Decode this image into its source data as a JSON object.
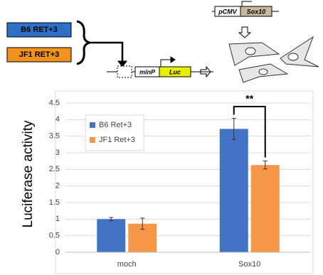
{
  "diagram": {
    "enhancers": [
      "B6 RET+3",
      "JF1 RET+3"
    ],
    "promoter": "minP",
    "reporter": "Luc",
    "vector_promoter": "pCMV",
    "vector_gene": "Sox10"
  },
  "chart_data": {
    "type": "bar",
    "y_label": "Luciferase activity",
    "categories": [
      "moch",
      "Sox10"
    ],
    "series": [
      {
        "name": "B6 Ret+3",
        "color": "#4472c4",
        "values": [
          1.0,
          3.72
        ],
        "errors": [
          0.05,
          0.32
        ]
      },
      {
        "name": "JF1 Ret+3",
        "color": "#f79646",
        "values": [
          0.86,
          2.63
        ],
        "errors": [
          0.17,
          0.12
        ]
      }
    ],
    "ylim": [
      0,
      4.5
    ],
    "yticks": [
      0,
      0.5,
      1,
      1.5,
      2,
      2.5,
      3,
      3.5,
      4,
      4.5
    ],
    "grid": true,
    "annotation": "**"
  }
}
